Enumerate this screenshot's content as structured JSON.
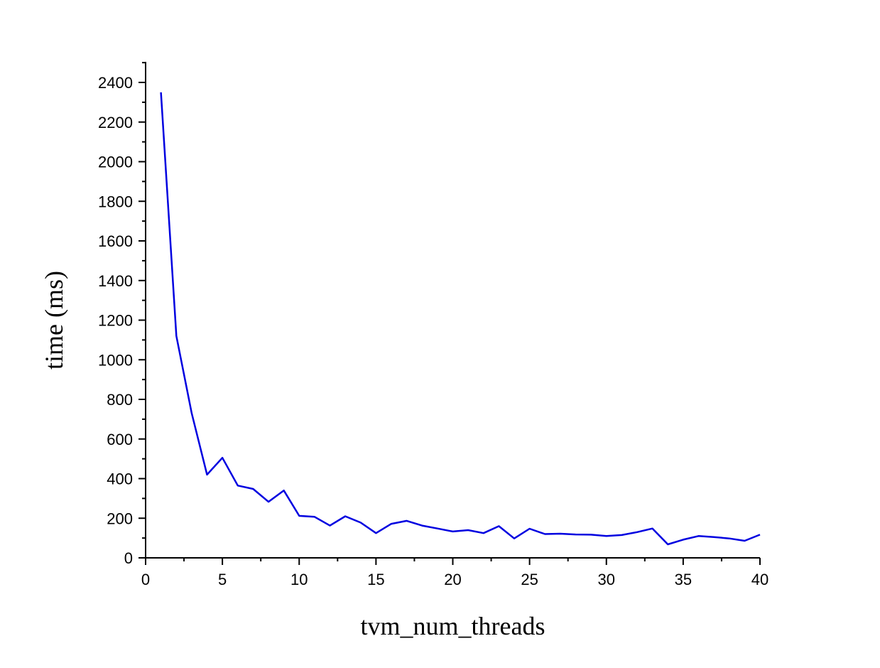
{
  "chart_data": {
    "type": "line",
    "title": "",
    "xlabel": "tvm_num_threads",
    "ylabel": "time (ms)",
    "xlim": [
      0,
      40
    ],
    "ylim": [
      0,
      2500
    ],
    "x_ticks": [
      0,
      5,
      10,
      15,
      20,
      25,
      30,
      35,
      40
    ],
    "y_ticks": [
      0,
      200,
      400,
      600,
      800,
      1000,
      1200,
      1400,
      1600,
      1800,
      2000,
      2200,
      2400
    ],
    "x_tick_labels": [
      "0",
      "5",
      "10",
      "15",
      "20",
      "25",
      "30",
      "35",
      "40"
    ],
    "y_tick_labels": [
      "0",
      "200",
      "400",
      "600",
      "800",
      "1000",
      "1200",
      "1400",
      "1600",
      "1800",
      "2000",
      "2200",
      "2400"
    ],
    "grid": false,
    "legend": "none",
    "line_color": "#0000e0",
    "series": [
      {
        "x": [
          1,
          2,
          3,
          4,
          5,
          6,
          7,
          8,
          9,
          10,
          11,
          12,
          13,
          14,
          15,
          16,
          17,
          18,
          19,
          20,
          21,
          22,
          23,
          24,
          25,
          26,
          27,
          28,
          29,
          30,
          31,
          32,
          33,
          34,
          35,
          36,
          37,
          38,
          39,
          40
        ],
        "values": [
          2350,
          1120,
          730,
          420,
          505,
          365,
          348,
          283,
          340,
          212,
          207,
          163,
          210,
          178,
          125,
          172,
          187,
          163,
          148,
          133,
          140,
          125,
          160,
          98,
          147,
          120,
          122,
          118,
          117,
          110,
          115,
          130,
          148,
          68,
          92,
          110,
          105,
          98,
          86,
          117
        ]
      }
    ]
  }
}
